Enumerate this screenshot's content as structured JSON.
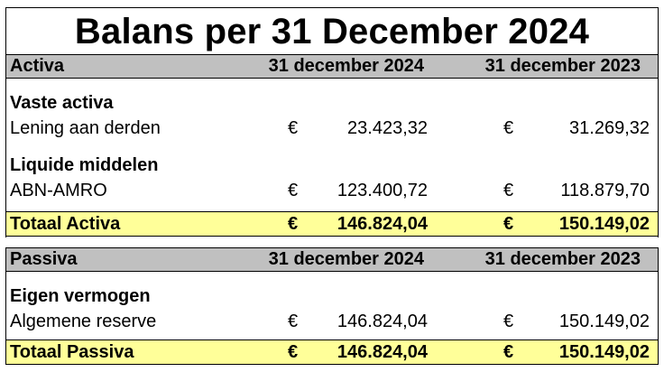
{
  "title": "Balans per 31 December 2024",
  "currency": "€",
  "activa": {
    "header": {
      "label": "Activa",
      "col1": "31 december 2024",
      "col2": "31 december 2023"
    },
    "groups": [
      {
        "heading": "Vaste activa",
        "items": [
          {
            "label": "Lening aan derden",
            "v2024": "23.423,32",
            "v2023": "31.269,32"
          }
        ]
      },
      {
        "heading": "Liquide middelen",
        "items": [
          {
            "label": "ABN-AMRO",
            "v2024": "123.400,72",
            "v2023": "118.879,70"
          }
        ]
      }
    ],
    "total": {
      "label": "Totaal Activa",
      "v2024": "146.824,04",
      "v2023": "150.149,02"
    }
  },
  "passiva": {
    "header": {
      "label": "Passiva",
      "col1": "31 december 2024",
      "col2": "31 december 2023"
    },
    "groups": [
      {
        "heading": "Eigen vermogen",
        "items": [
          {
            "label": "Algemene reserve",
            "v2024": "146.824,04",
            "v2023": "150.149,02"
          }
        ]
      }
    ],
    "total": {
      "label": "Totaal Passiva",
      "v2024": "146.824,04",
      "v2023": "150.149,02"
    }
  },
  "colors": {
    "header_bg": "#c0c0c0",
    "total_bg": "#ffff99"
  }
}
